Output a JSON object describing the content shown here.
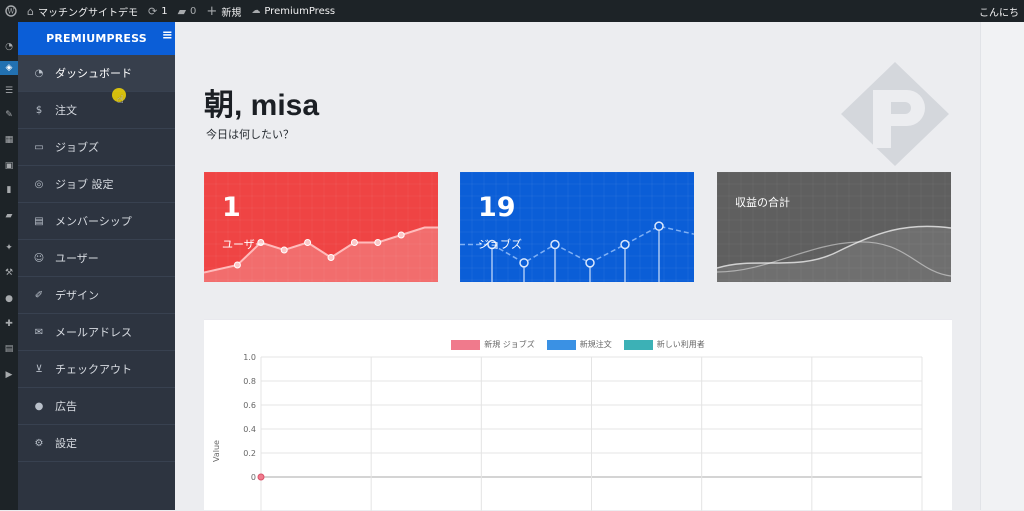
{
  "adminbar": {
    "site_name": "マッチングサイトデモ",
    "updates_count": "1",
    "comments_count": "0",
    "new_label": "新規",
    "plugin_label": "PremiumPress",
    "greeting": "こんにち"
  },
  "sidebar": {
    "brand": "PREMIUMPRESS",
    "items": [
      {
        "label": "ダッシュボード",
        "icon": "gauge-icon"
      },
      {
        "label": "注文",
        "icon": "dollar-icon"
      },
      {
        "label": "ジョブズ",
        "icon": "briefcase-icon"
      },
      {
        "label": "ジョブ 設定",
        "icon": "coins-icon"
      },
      {
        "label": "メンバーシップ",
        "icon": "id-card-icon"
      },
      {
        "label": "ユーザー",
        "icon": "users-icon"
      },
      {
        "label": "デザイン",
        "icon": "brush-icon"
      },
      {
        "label": "メールアドレス",
        "icon": "envelope-icon"
      },
      {
        "label": "チェックアウト",
        "icon": "cart-icon"
      },
      {
        "label": "広告",
        "icon": "circle-icon"
      },
      {
        "label": "設定",
        "icon": "gear-icon"
      }
    ]
  },
  "main": {
    "title": "朝, misa",
    "subtitle": "今日は何したい？"
  },
  "cards": [
    {
      "value": "1",
      "label": "ユーザー",
      "color": "#ef4444",
      "sparkline": [
        1,
        2,
        5,
        4,
        5,
        3,
        5,
        5,
        6,
        7
      ]
    },
    {
      "value": "19",
      "label": "ジョブズ",
      "color": "#0b5ed7",
      "sparkline": [
        3,
        3,
        1,
        3,
        1,
        3,
        5
      ]
    },
    {
      "value": "",
      "label": "収益の合計",
      "color": "#5f5f5f"
    }
  ],
  "chart_data": {
    "type": "line",
    "series": [
      {
        "name": "新規 ジョブズ",
        "color": "#f07a8c",
        "values": [
          0
        ]
      },
      {
        "name": "新規注文",
        "color": "#3a91e4",
        "values": []
      },
      {
        "name": "新しい利用者",
        "color": "#3cb1b6",
        "values": []
      }
    ],
    "ylabel": "Value",
    "y_ticks": [
      "1.0",
      "0.8",
      "0.6",
      "0.4",
      "0.2",
      "0"
    ],
    "ylim": [
      0,
      1
    ],
    "grid": true,
    "legend_position": "top"
  }
}
